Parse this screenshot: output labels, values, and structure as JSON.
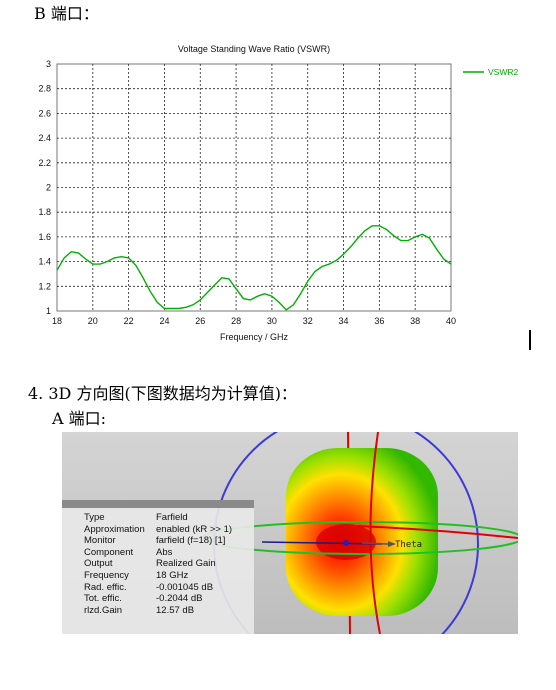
{
  "section_b": {
    "heading": "B 端口："
  },
  "chart_data": {
    "type": "line",
    "title": "Voltage Standing Wave Ratio (VSWR)",
    "xlabel": "Frequency / GHz",
    "ylabel": "",
    "xlim": [
      18,
      40
    ],
    "ylim": [
      1,
      3
    ],
    "xticks": [
      "18",
      "20",
      "22",
      "24",
      "26",
      "28",
      "30",
      "32",
      "34",
      "36",
      "38",
      "40"
    ],
    "yticks": [
      "1",
      "1.2",
      "1.4",
      "1.6",
      "1.8",
      "2",
      "2.2",
      "2.4",
      "2.6",
      "2.8",
      "3"
    ],
    "grid": true,
    "legend_position": "top-right",
    "series": [
      {
        "name": "VSWR2",
        "color": "#00b000",
        "x": [
          18,
          18.4,
          18.8,
          19.2,
          19.6,
          20,
          20.4,
          20.8,
          21.2,
          21.6,
          22,
          22.4,
          22.8,
          23.2,
          23.6,
          24,
          24.4,
          24.8,
          25.2,
          25.6,
          26,
          26.4,
          26.8,
          27.2,
          27.6,
          28,
          28.4,
          28.8,
          29.2,
          29.6,
          30,
          30.4,
          30.8,
          31.2,
          31.6,
          32,
          32.4,
          32.8,
          33.2,
          33.6,
          34,
          34.4,
          34.8,
          35.2,
          35.6,
          36,
          36.4,
          36.8,
          37.2,
          37.6,
          38,
          38.4,
          38.8,
          39.2,
          39.6,
          40
        ],
        "y": [
          1.33,
          1.43,
          1.48,
          1.47,
          1.42,
          1.38,
          1.38,
          1.4,
          1.43,
          1.44,
          1.43,
          1.37,
          1.27,
          1.16,
          1.07,
          1.02,
          1.02,
          1.02,
          1.03,
          1.05,
          1.09,
          1.15,
          1.21,
          1.27,
          1.26,
          1.18,
          1.1,
          1.09,
          1.12,
          1.14,
          1.12,
          1.07,
          1.01,
          1.05,
          1.14,
          1.24,
          1.32,
          1.36,
          1.38,
          1.41,
          1.46,
          1.52,
          1.59,
          1.65,
          1.69,
          1.69,
          1.66,
          1.61,
          1.57,
          1.57,
          1.6,
          1.62,
          1.59,
          1.5,
          1.42,
          1.38
        ]
      }
    ]
  },
  "section_4": {
    "heading": "4. 3D 方向图(下图数据均为计算值)："
  },
  "section_a": {
    "heading": "A 端口:"
  },
  "farfield": {
    "axis_label": "Theta",
    "info": [
      {
        "key": "Type",
        "value": "Farfield"
      },
      {
        "key": "Approximation",
        "value": "enabled (kR >> 1)"
      },
      {
        "key": "Monitor",
        "value": "farfield (f=18) [1]"
      },
      {
        "key": "Component",
        "value": "Abs"
      },
      {
        "key": "Output",
        "value": "Realized Gain"
      },
      {
        "key": "Frequency",
        "value": "18 GHz"
      },
      {
        "key": "Rad. effic.",
        "value": "-0.001045 dB"
      },
      {
        "key": "Tot. effic.",
        "value": "-0.2044 dB"
      },
      {
        "key": "rlzd.Gain",
        "value": "12.57 dB"
      }
    ]
  }
}
